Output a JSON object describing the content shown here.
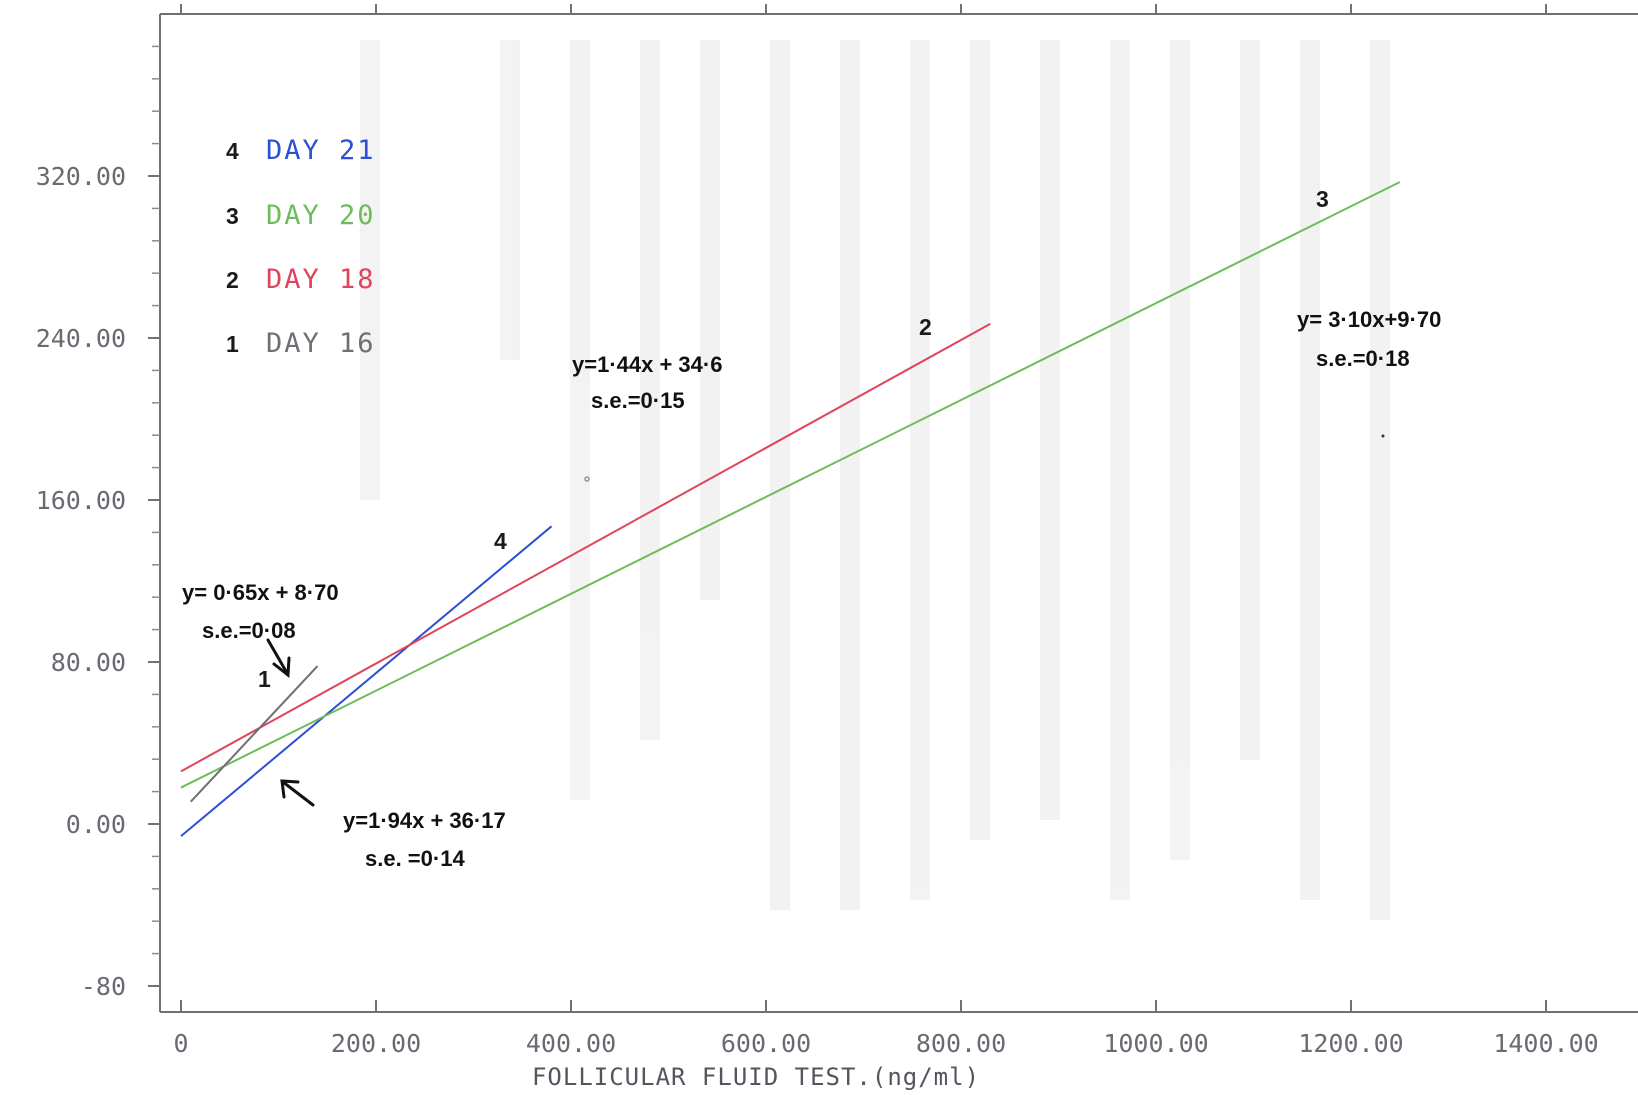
{
  "chart_data": {
    "type": "line",
    "title": "",
    "xlabel": "FOLLICULAR FLUID TEST.(ng/ml)",
    "ylabel": "",
    "xlim": [
      0,
      1400
    ],
    "ylim": [
      -80,
      320
    ],
    "x_ticks": [
      0,
      200,
      400,
      600,
      800,
      1000,
      1200,
      1400
    ],
    "x_tick_labels": [
      "0",
      "200.00",
      "400.00",
      "600.00",
      "800.00",
      "1000.00",
      "1200.00",
      "1400.00"
    ],
    "y_ticks": [
      -80,
      0,
      80,
      160,
      240,
      320
    ],
    "y_tick_labels": [
      "-80",
      "0.00",
      "80.00",
      "160.00",
      "240.00",
      "320.00"
    ],
    "grid": false,
    "legend_position": "top-left",
    "series": [
      {
        "name": "DAY 21",
        "number": "4",
        "color": "#2b4fd6",
        "x": [
          0,
          380
        ],
        "y": [
          -6,
          147
        ],
        "equation": "y=1·94x  + 36·17",
        "se": "s.e. =0·14"
      },
      {
        "name": "DAY 20",
        "number": "3",
        "color": "#6cbd5a",
        "x": [
          0,
          1250
        ],
        "y": [
          18,
          317
        ],
        "equation": "y=  3·10x+9·70",
        "se": "s.e.=0·18"
      },
      {
        "name": "DAY 18",
        "number": "2",
        "color": "#e0445c",
        "x": [
          0,
          830
        ],
        "y": [
          26,
          247
        ],
        "equation": "y=1·44x  + 34·6",
        "se": "s.e.=0·15"
      },
      {
        "name": "DAY 16",
        "number": "1",
        "color": "#6e6e74",
        "x": [
          10,
          140
        ],
        "y": [
          11,
          78
        ],
        "equation": "y= 0·65x  + 8·70",
        "se": "s.e.=0·08"
      }
    ]
  }
}
